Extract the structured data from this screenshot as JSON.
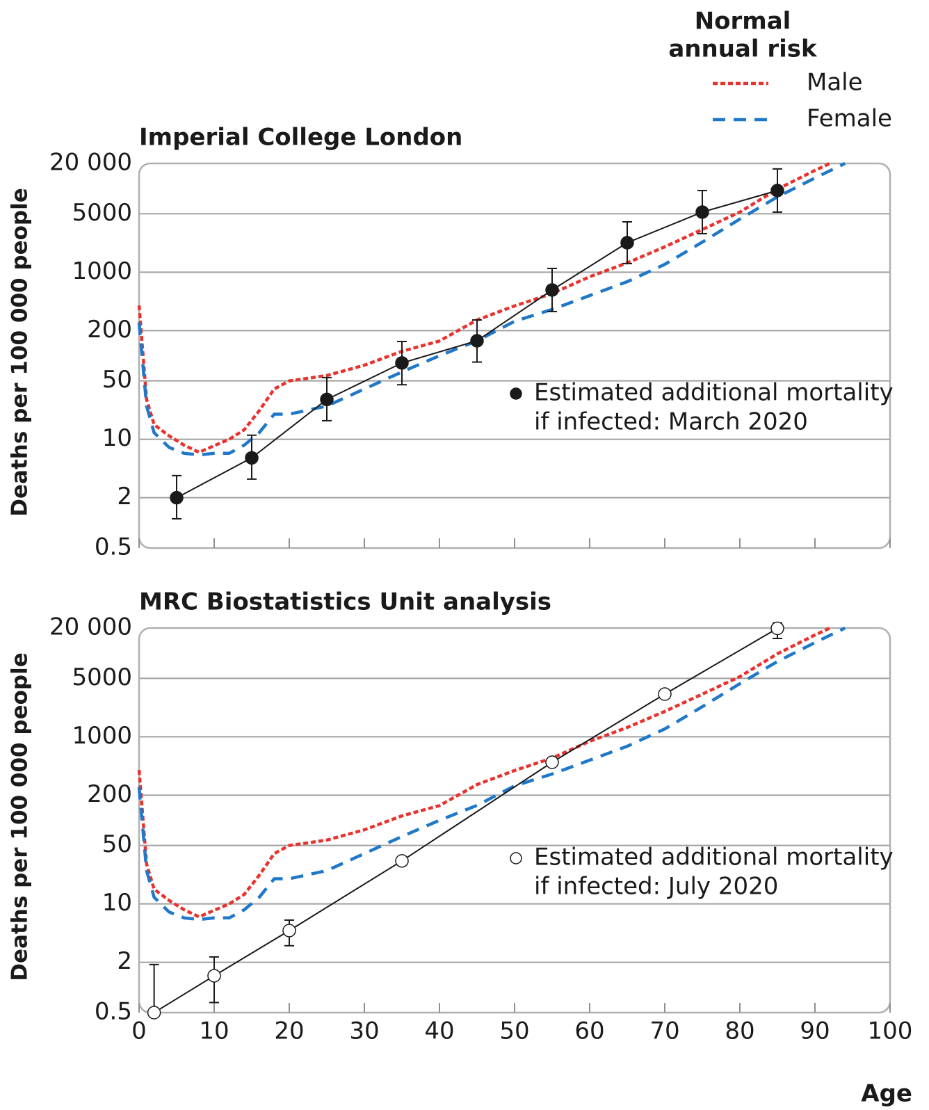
{
  "chart_data": [
    {
      "type": "line",
      "title": "Imperial College London",
      "y_label": "Deaths per 100 000 people",
      "log_y": true,
      "grid": true,
      "ylim": [
        0.5,
        20000
      ],
      "yticks": [
        0.5,
        2,
        10,
        50,
        200,
        1000,
        5000,
        {
          "value": 20000,
          "label": "20 000"
        }
      ],
      "xlim": [
        0,
        100
      ],
      "xticks": [
        0,
        10,
        20,
        30,
        40,
        50,
        60,
        70,
        80,
        90,
        100
      ],
      "legend_title": [
        "Normal",
        "annual risk"
      ],
      "series": [
        {
          "name": "Male",
          "color": "#e8322e",
          "dash": "dotted",
          "x": [
            0,
            1,
            2,
            4,
            6,
            8,
            10,
            12,
            14,
            16,
            18,
            20,
            25,
            30,
            35,
            40,
            45,
            50,
            55,
            60,
            65,
            70,
            75,
            80,
            85,
            90,
            92
          ],
          "values": [
            400,
            30,
            15,
            11,
            8.5,
            7,
            8.4,
            10,
            13,
            22,
            40,
            50,
            58,
            77,
            113,
            150,
            268,
            394,
            556,
            881,
            1290,
            2010,
            3240,
            5240,
            9840,
            16500,
            20000
          ]
        },
        {
          "name": "Female",
          "color": "#1f78c8",
          "dash": "dashed",
          "x": [
            0,
            1,
            2,
            4,
            6,
            8,
            10,
            12,
            14,
            16,
            18,
            20,
            25,
            30,
            35,
            40,
            45,
            50,
            55,
            60,
            65,
            70,
            75,
            80,
            85,
            90,
            94
          ],
          "values": [
            250,
            25,
            12,
            8,
            6.8,
            6.5,
            6.8,
            6.8,
            8.5,
            12,
            20,
            20,
            25,
            40,
            64,
            100,
            151,
            258,
            358,
            525,
            770,
            1240,
            2290,
            4320,
            7960,
            13400,
            20000
          ]
        }
      ],
      "points": {
        "marker": "filled",
        "color": "#1a1a1a",
        "x": [
          5,
          15,
          25,
          35,
          45,
          55,
          65,
          75,
          85
        ],
        "values": [
          2,
          6,
          30,
          82,
          151,
          612,
          2252,
          5236,
          9480
        ],
        "lower": [
          1.12,
          3.34,
          16.7,
          45,
          84,
          338,
          1268,
          2890,
          5236
        ],
        "upper": [
          3.68,
          11.2,
          54.8,
          148,
          268,
          1109,
          4000,
          9480,
          17200
        ]
      },
      "annotation": [
        "Estimated additional mortality",
        "if infected: March 2020"
      ]
    },
    {
      "type": "line",
      "title": "MRC Biostatistics Unit analysis",
      "y_label": "Deaths per 100 000 people",
      "x_label": "Age",
      "log_y": true,
      "grid": true,
      "ylim": [
        0.5,
        20000
      ],
      "yticks": [
        0.5,
        2,
        10,
        50,
        200,
        1000,
        5000,
        {
          "value": 20000,
          "label": "20 000"
        }
      ],
      "xlim": [
        0,
        100
      ],
      "xticks": [
        0,
        10,
        20,
        30,
        40,
        50,
        60,
        70,
        80,
        90,
        100
      ],
      "series": [
        {
          "name": "Male",
          "color": "#e8322e",
          "dash": "dotted",
          "x": [
            0,
            1,
            2,
            4,
            6,
            8,
            10,
            12,
            14,
            16,
            18,
            20,
            25,
            30,
            35,
            40,
            45,
            50,
            55,
            60,
            65,
            70,
            75,
            80,
            85,
            90,
            92
          ],
          "values": [
            400,
            30,
            15,
            11,
            8.5,
            7,
            8.4,
            10,
            13,
            22,
            40,
            50,
            58,
            77,
            113,
            150,
            268,
            394,
            556,
            881,
            1290,
            2010,
            3240,
            5240,
            9840,
            16500,
            20000
          ]
        },
        {
          "name": "Female",
          "color": "#1f78c8",
          "dash": "dashed",
          "x": [
            0,
            1,
            2,
            4,
            6,
            8,
            10,
            12,
            14,
            16,
            18,
            20,
            25,
            30,
            35,
            40,
            45,
            50,
            55,
            60,
            65,
            70,
            75,
            80,
            85,
            90,
            94
          ],
          "values": [
            250,
            25,
            12,
            8,
            6.8,
            6.5,
            6.8,
            6.8,
            8.5,
            12,
            20,
            20,
            25,
            40,
            64,
            100,
            151,
            258,
            358,
            525,
            770,
            1240,
            2290,
            4320,
            7960,
            13400,
            20000
          ]
        }
      ],
      "points": {
        "marker": "open",
        "color": "#1a1a1a",
        "x": [
          2,
          10,
          20,
          35,
          55,
          70,
          85
        ],
        "values": [
          0.5,
          1.38,
          4.8,
          32.7,
          495,
          3240,
          19800
        ],
        "lower": [
          0.5,
          0.66,
          3.16,
          null,
          null,
          null,
          15000
        ],
        "upper": [
          1.88,
          2.32,
          6.4,
          null,
          null,
          null,
          23000
        ]
      },
      "annotation": [
        "Estimated additional mortality",
        "if infected: July 2020"
      ]
    }
  ]
}
